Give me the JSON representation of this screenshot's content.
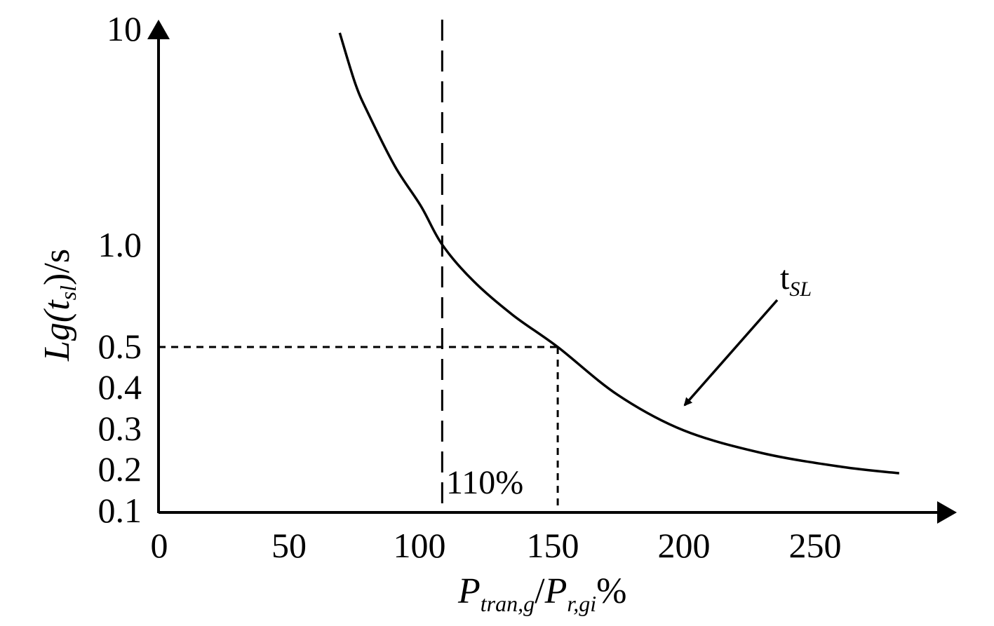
{
  "chart_data": {
    "type": "line",
    "xlabel": {
      "p1": "P",
      "sub1": "tran,g",
      "slash": "/",
      "p2": "P",
      "sub2": "r,gi",
      "unit": "%"
    },
    "ylabel": {
      "l": "L",
      "g": "g(",
      "t": "t",
      "sub": "sl",
      "close": ")",
      "unit": "/s"
    },
    "x_ticks": [
      "0",
      "50",
      "100",
      "150",
      "200",
      "250"
    ],
    "y_ticks": [
      "10",
      "1.0",
      "0.5",
      "0.4",
      "0.3",
      "0.2",
      "0.1"
    ],
    "xlim": [
      0,
      300
    ],
    "series": [
      {
        "name": "t_SL",
        "label_main": "t",
        "label_sub": "SL",
        "x": [
          69,
          75,
          80,
          90,
          100,
          108,
          120,
          135,
          152,
          175,
          200,
          230,
          260,
          282
        ],
        "y": [
          9.5,
          5.5,
          4.0,
          2.3,
          1.5,
          1.0,
          0.78,
          0.62,
          0.5,
          0.385,
          0.3,
          0.24,
          0.21,
          0.195
        ]
      }
    ],
    "annotations": [
      {
        "text": "110%",
        "x": 108
      }
    ],
    "reference_lines": [
      {
        "type": "vertical",
        "x": 108,
        "style": "long-dash"
      },
      {
        "type": "vertical",
        "x": 152,
        "style": "short-dash"
      },
      {
        "type": "horizontal",
        "y": 0.5,
        "style": "short-dash"
      }
    ],
    "grid": false,
    "legend": "none",
    "colors": {
      "line": "#000000",
      "background": "#ffffff"
    }
  }
}
